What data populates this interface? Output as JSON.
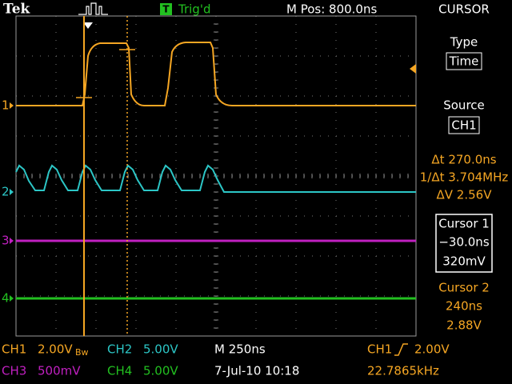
{
  "header": {
    "brand": "Tek",
    "trigger_badge": "T",
    "trigger_status": "Trig'd",
    "position": "M Pos: 800.0ns",
    "menu_title": "CURSOR"
  },
  "menu": {
    "type_label": "Type",
    "type_value": "Time",
    "source_label": "Source",
    "source_value": "CH1"
  },
  "readouts": {
    "delta_t": "Δt 270.0ns",
    "inverse_delta_t": "1/Δt 3.704MHz",
    "delta_v": "ΔV 2.56V"
  },
  "cursor1": {
    "title": "Cursor 1",
    "time": "−30.0ns",
    "voltage": "320mV"
  },
  "cursor2": {
    "title": "Cursor 2",
    "time": "240ns",
    "voltage": "2.88V"
  },
  "channel_markers": [
    "1",
    "2",
    "3",
    "4"
  ],
  "footer": {
    "ch1": "CH1",
    "ch1_scale": "2.00V",
    "ch1_bw": "Bw",
    "ch2": "CH2",
    "ch2_scale": "5.00V",
    "timebase": "M 250ns",
    "trigger_source": "CH1",
    "trigger_level": "2.00V",
    "ch3": "CH3",
    "ch3_scale": "500mV",
    "ch4": "CH4",
    "ch4_scale": "5.00V",
    "date": "7-Jul-10 10:18",
    "frequency": "22.7865kHz"
  }
}
